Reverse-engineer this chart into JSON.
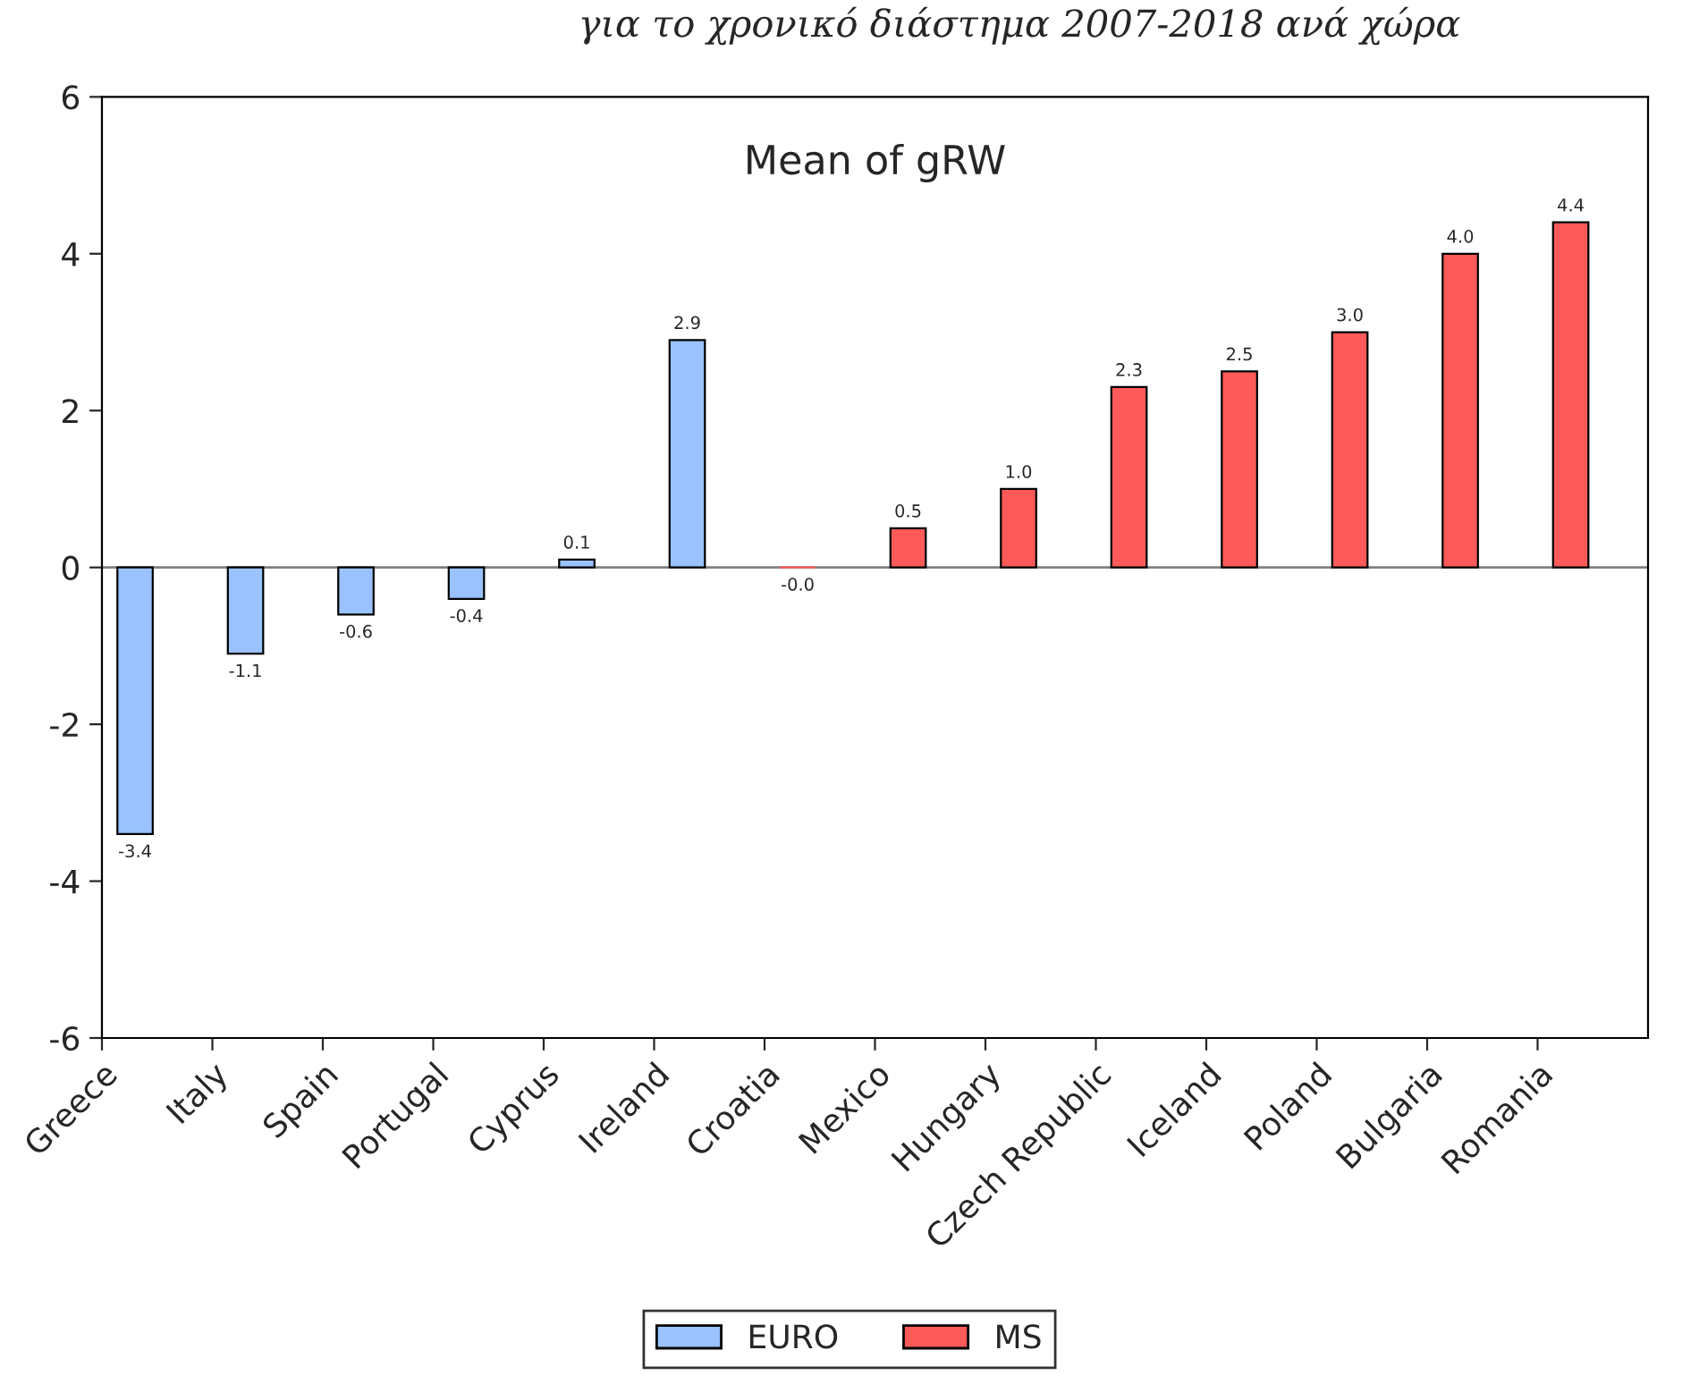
{
  "chart_data": {
    "type": "bar",
    "title": "Mean of gRW",
    "categories": [
      "Greece",
      "Italy",
      "Spain",
      "Portugal",
      "Cyprus",
      "Ireland",
      "Croatia",
      "Mexico",
      "Hungary",
      "Czech Republic",
      "Iceland",
      "Poland",
      "Bulgaria",
      "Romania"
    ],
    "series": [
      {
        "name": "EURO",
        "color": "#99c2ff",
        "values": [
          -3.4,
          -1.1,
          -0.6,
          -0.4,
          0.1,
          2.9,
          null,
          null,
          null,
          null,
          null,
          null,
          null,
          null
        ],
        "value_labels": [
          "-3.4",
          "-1.1",
          "-0.6",
          "-0.4",
          "0.1",
          "2.9",
          null,
          null,
          null,
          null,
          null,
          null,
          null,
          null
        ]
      },
      {
        "name": "MS",
        "color": "#ff5a5a",
        "values": [
          null,
          null,
          null,
          null,
          null,
          null,
          -0.0,
          0.5,
          1.0,
          2.3,
          2.5,
          3.0,
          4.0,
          4.4
        ],
        "value_labels": [
          null,
          null,
          null,
          null,
          null,
          null,
          "-0.0",
          "0.5",
          "1.0",
          "2.3",
          "2.5",
          "3.0",
          "4.0",
          "4.4"
        ]
      }
    ],
    "ylim": [
      -6,
      6
    ],
    "yticks": [
      -6,
      -4,
      -2,
      0,
      2,
      4,
      6
    ],
    "ref_lines": [
      {
        "axis": "y",
        "value": 0,
        "color": "#808080"
      }
    ],
    "annotations": [
      "για το χρονικό διάστημα 2007-2018 ανά χώρα"
    ],
    "grid": false,
    "legend": "bottom"
  }
}
